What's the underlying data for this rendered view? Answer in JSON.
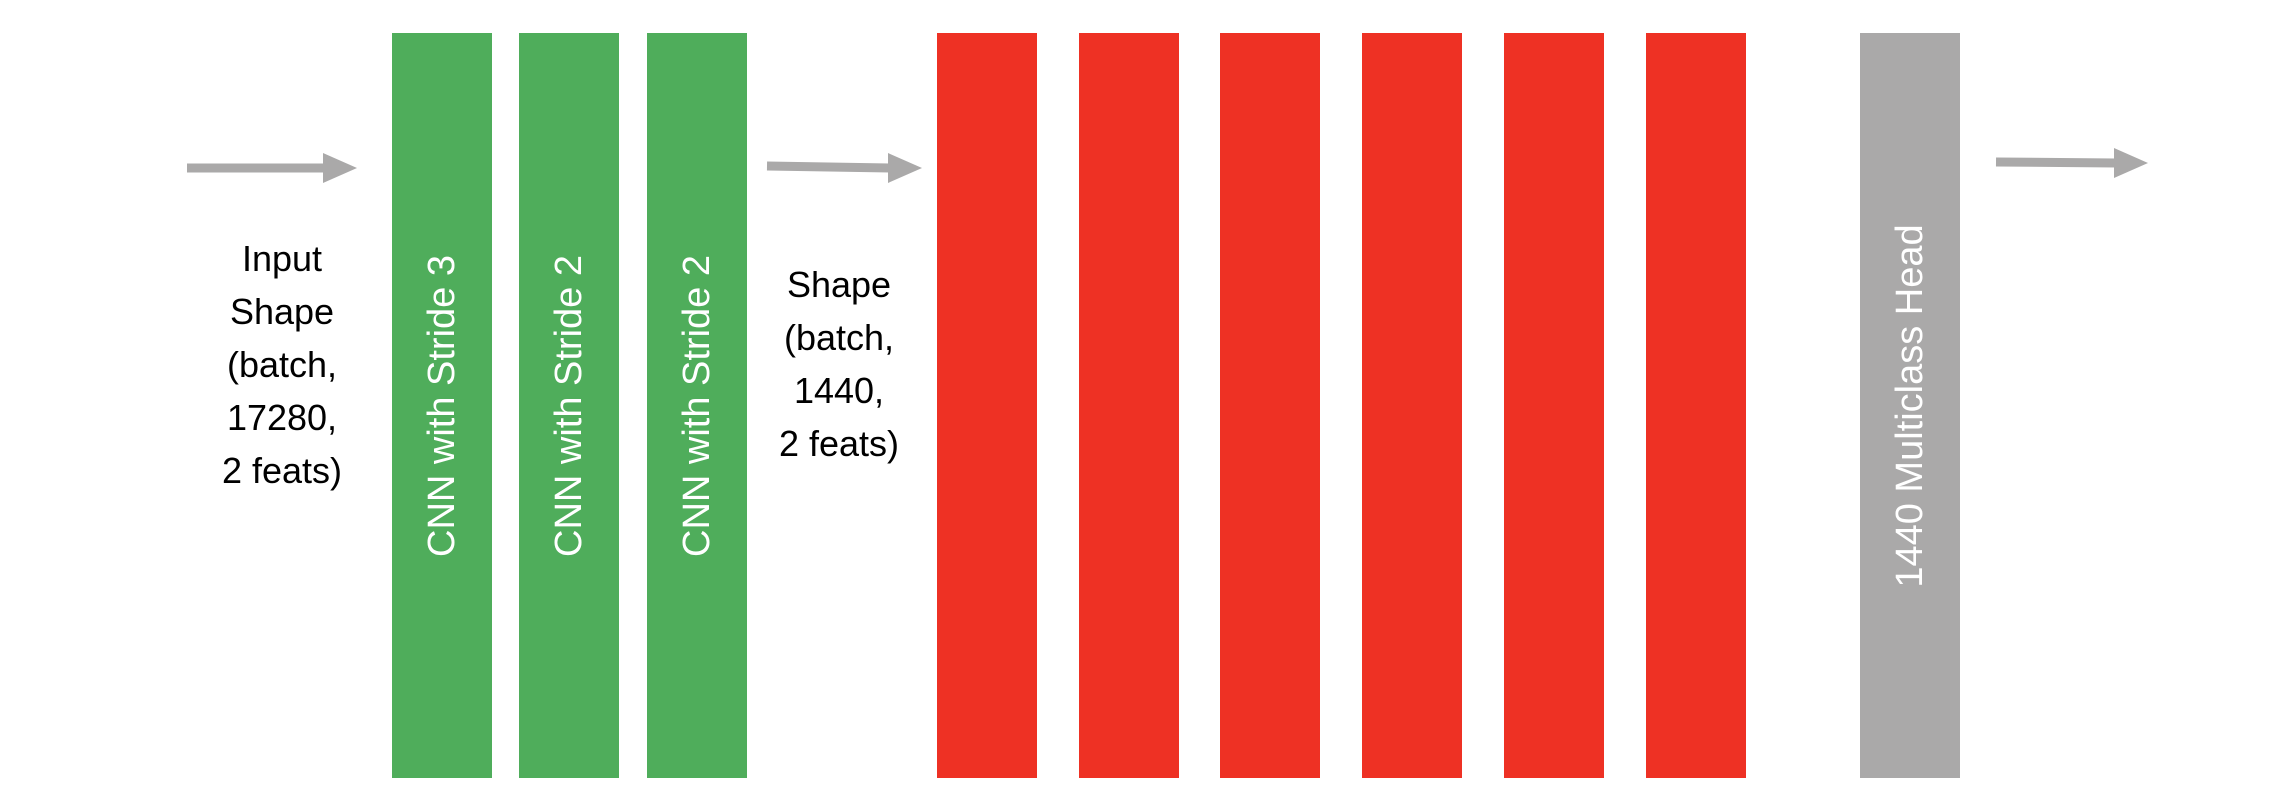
{
  "input_label": {
    "lines": [
      "Input",
      "Shape",
      "(batch,",
      "17280,",
      "2 feats)"
    ]
  },
  "mid_label": {
    "lines": [
      "Shape",
      "(batch,",
      "1440,",
      "2 feats)"
    ]
  },
  "cnn_blocks": [
    {
      "label": "CNN with Stride 3",
      "color": "#4fad5b"
    },
    {
      "label": "CNN with Stride 2",
      "color": "#4fad5b"
    },
    {
      "label": "CNN with Stride 2",
      "color": "#4fad5b"
    }
  ],
  "red_blocks": {
    "count": 6,
    "color": "#ee3124"
  },
  "head_block": {
    "label": "1440 Multiclass Head",
    "color": "#aaa9a9"
  },
  "arrow_color": "#aaa9a9"
}
